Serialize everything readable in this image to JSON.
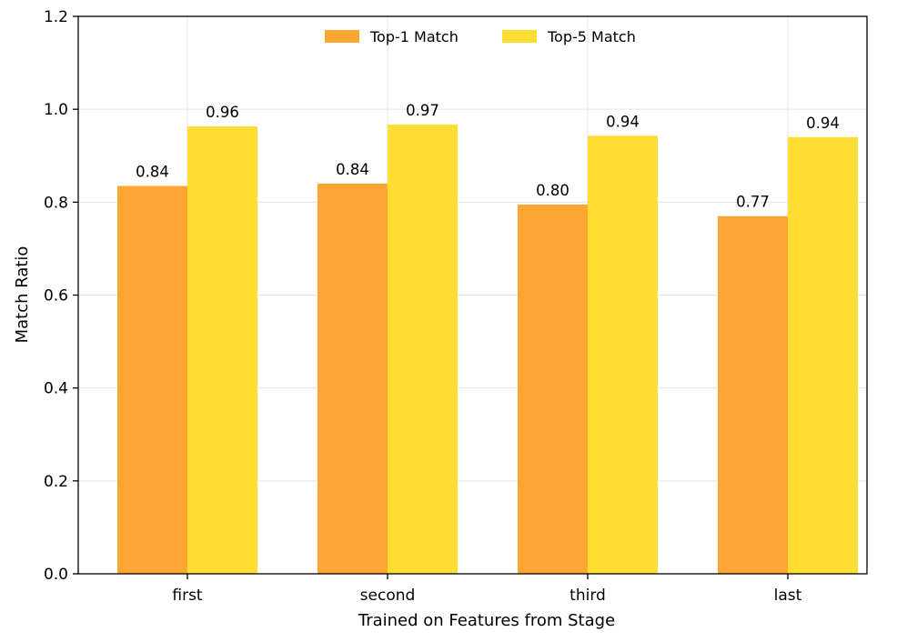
{
  "chart_data": {
    "type": "bar",
    "categories": [
      "first",
      "second",
      "third",
      "last"
    ],
    "series": [
      {
        "name": "Top-1 Match",
        "values": [
          0.835,
          0.84,
          0.795,
          0.77
        ],
        "labels": [
          "0.84",
          "0.84",
          "0.80",
          "0.77"
        ],
        "color": "#ffa533"
      },
      {
        "name": "Top-5 Match",
        "values": [
          0.963,
          0.967,
          0.943,
          0.94
        ],
        "labels": [
          "0.96",
          "0.97",
          "0.94",
          "0.94"
        ],
        "color": "#ffdd33"
      }
    ],
    "xlabel": "Trained on Features from Stage",
    "ylabel": "Match Ratio",
    "ylim": [
      0,
      1.2
    ],
    "yticks": [
      0.0,
      0.2,
      0.4,
      0.6,
      0.8,
      1.0,
      1.2
    ],
    "ytick_labels": [
      "0.0",
      "0.2",
      "0.4",
      "0.6",
      "0.8",
      "1.0",
      "1.2"
    ],
    "grid": true,
    "legend_position": "top-center"
  }
}
